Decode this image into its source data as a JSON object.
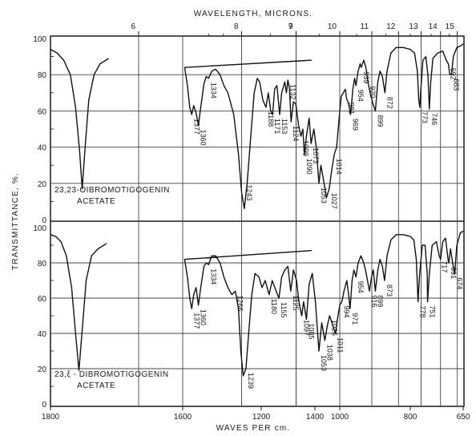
{
  "chart_data": {
    "type": "line",
    "top_axis": {
      "label": "WAVELENGTH, MICRONS.",
      "ticks": [
        {
          "value": 6,
          "label": "6"
        },
        {
          "value": 7,
          "label": "7"
        },
        {
          "value": 8,
          "label": "8"
        },
        {
          "value": 9,
          "label": "9"
        },
        {
          "value": 10,
          "label": "10"
        },
        {
          "value": 11,
          "label": "11"
        },
        {
          "value": 12,
          "label": "12"
        },
        {
          "value": 13,
          "label": "13"
        },
        {
          "value": 14,
          "label": "14"
        },
        {
          "value": 15,
          "label": "15"
        }
      ]
    },
    "bottom_axis": {
      "label": "WAVES PER cm.",
      "range": [
        1800,
        650
      ],
      "ticks": [
        {
          "value": 1800,
          "label": "1800"
        },
        {
          "value": 1600,
          "label": "1600"
        },
        {
          "value": 1400,
          "label": "1400"
        },
        {
          "value": 1200,
          "label": "1200"
        },
        {
          "value": 1000,
          "label": "1000"
        },
        {
          "value": 800,
          "label": "800"
        },
        {
          "value": 650,
          "label": "650"
        }
      ]
    },
    "y_axis": {
      "label": "TRANSMITTANCE, %.",
      "range": [
        0,
        100
      ],
      "ticks": [
        {
          "value": 0,
          "label": "0"
        },
        {
          "value": 20,
          "label": "20"
        },
        {
          "value": 40,
          "label": "40"
        },
        {
          "value": 60,
          "label": "60"
        },
        {
          "value": 80,
          "label": "80"
        },
        {
          "value": 100,
          "label": "100"
        }
      ]
    },
    "grid": true,
    "panels": [
      {
        "sample_label": [
          "23,23-OIBROMOTIGOGENIN",
          "ACETATE"
        ],
        "carbonyl_region": [
          [
            1800,
            94
          ],
          [
            1790,
            92
          ],
          [
            1780,
            88
          ],
          [
            1770,
            80
          ],
          [
            1762,
            62
          ],
          [
            1756,
            38
          ],
          [
            1752,
            17
          ],
          [
            1748,
            38
          ],
          [
            1742,
            66
          ],
          [
            1734,
            80
          ],
          [
            1725,
            86
          ],
          [
            1712,
            89
          ]
        ],
        "fingerprint_region": [
          [
            1405,
            88
          ],
          [
            1395,
            84
          ],
          [
            1388,
            74
          ],
          [
            1382,
            62
          ],
          [
            1377,
            58
          ],
          [
            1372,
            63
          ],
          [
            1366,
            59
          ],
          [
            1360,
            52
          ],
          [
            1354,
            62
          ],
          [
            1346,
            75
          ],
          [
            1340,
            79
          ],
          [
            1334,
            78
          ],
          [
            1326,
            82
          ],
          [
            1316,
            83
          ],
          [
            1305,
            80
          ],
          [
            1295,
            74
          ],
          [
            1285,
            70
          ],
          [
            1270,
            58
          ],
          [
            1258,
            36
          ],
          [
            1250,
            15
          ],
          [
            1243,
            6
          ],
          [
            1236,
            20
          ],
          [
            1226,
            48
          ],
          [
            1218,
            70
          ],
          [
            1210,
            78
          ],
          [
            1204,
            76
          ],
          [
            1196,
            66
          ],
          [
            1188,
            62
          ],
          [
            1182,
            70
          ],
          [
            1176,
            60
          ],
          [
            1171,
            58
          ],
          [
            1166,
            72
          ],
          [
            1160,
            74
          ],
          [
            1153,
            58
          ],
          [
            1148,
            70
          ],
          [
            1140,
            76
          ],
          [
            1136,
            70
          ],
          [
            1132,
            77
          ],
          [
            1128,
            72
          ],
          [
            1124,
            54
          ],
          [
            1118,
            65
          ],
          [
            1112,
            64
          ],
          [
            1105,
            52
          ],
          [
            1099,
            46
          ],
          [
            1094,
            50
          ],
          [
            1090,
            36
          ],
          [
            1085,
            46
          ],
          [
            1078,
            56
          ],
          [
            1073,
            42
          ],
          [
            1066,
            50
          ],
          [
            1060,
            40
          ],
          [
            1053,
            20
          ],
          [
            1048,
            30
          ],
          [
            1040,
            20
          ],
          [
            1034,
            12
          ],
          [
            1027,
            17
          ],
          [
            1020,
            28
          ],
          [
            1014,
            36
          ],
          [
            1008,
            40
          ],
          [
            1002,
            55
          ],
          [
            996,
            68
          ],
          [
            990,
            70
          ],
          [
            984,
            72
          ],
          [
            981,
            67
          ],
          [
            975,
            64
          ],
          [
            969,
            58
          ],
          [
            963,
            72
          ],
          [
            958,
            78
          ],
          [
            954,
            74
          ],
          [
            948,
            82
          ],
          [
            942,
            86
          ],
          [
            939,
            84
          ],
          [
            932,
            88
          ],
          [
            926,
            84
          ],
          [
            920,
            76
          ],
          [
            914,
            70
          ],
          [
            906,
            64
          ],
          [
            899,
            60
          ],
          [
            892,
            76
          ],
          [
            886,
            82
          ],
          [
            879,
            79
          ],
          [
            872,
            70
          ],
          [
            866,
            82
          ],
          [
            855,
            92
          ],
          [
            840,
            95
          ],
          [
            820,
            95
          ],
          [
            800,
            94
          ],
          [
            788,
            92
          ],
          [
            780,
            82
          ],
          [
            776,
            66
          ],
          [
            773,
            62
          ],
          [
            770,
            72
          ],
          [
            764,
            88
          ],
          [
            756,
            90
          ],
          [
            750,
            80
          ],
          [
            746,
            61
          ],
          [
            742,
            76
          ],
          [
            736,
            89
          ],
          [
            722,
            92
          ],
          [
            708,
            93
          ],
          [
            698,
            88
          ],
          [
            692,
            86
          ],
          [
            688,
            80
          ],
          [
            683,
            80
          ],
          [
            678,
            90
          ],
          [
            668,
            95
          ],
          [
            656,
            96
          ],
          [
            650,
            97
          ]
        ],
        "peak_labels": [
          {
            "x": 1377,
            "label": "1377"
          },
          {
            "x": 1360,
            "label": "1360"
          },
          {
            "x": 1334,
            "label": "1334"
          },
          {
            "x": 1243,
            "label": "1243"
          },
          {
            "x": 1188,
            "label": "1188"
          },
          {
            "x": 1171,
            "label": "1171"
          },
          {
            "x": 1153,
            "label": "1153"
          },
          {
            "x": 1132,
            "label": "1132"
          },
          {
            "x": 1124,
            "label": "1124"
          },
          {
            "x": 1099,
            "label": "1099"
          },
          {
            "x": 1090,
            "label": "1090"
          },
          {
            "x": 1073,
            "label": "1073"
          },
          {
            "x": 1053,
            "label": "1053"
          },
          {
            "x": 1027,
            "label": "1027"
          },
          {
            "x": 1014,
            "label": "1014"
          },
          {
            "x": 981,
            "label": "981"
          },
          {
            "x": 969,
            "label": "969"
          },
          {
            "x": 954,
            "label": "954"
          },
          {
            "x": 939,
            "label": "939"
          },
          {
            "x": 920,
            "label": "920"
          },
          {
            "x": 899,
            "label": "899"
          },
          {
            "x": 872,
            "label": "872"
          },
          {
            "x": 773,
            "label": "773"
          },
          {
            "x": 746,
            "label": "746"
          },
          {
            "x": 692,
            "label": "692"
          },
          {
            "x": 683,
            "label": "683"
          }
        ]
      },
      {
        "sample_label": [
          "23,ξ - DIBROMOTIGOGENIN",
          "ACETATE"
        ],
        "carbonyl_region": [
          [
            1800,
            96
          ],
          [
            1792,
            95
          ],
          [
            1784,
            92
          ],
          [
            1776,
            84
          ],
          [
            1768,
            66
          ],
          [
            1762,
            40
          ],
          [
            1757,
            19
          ],
          [
            1752,
            42
          ],
          [
            1746,
            70
          ],
          [
            1738,
            84
          ],
          [
            1728,
            88
          ],
          [
            1715,
            91
          ]
        ],
        "fingerprint_region": [
          [
            1405,
            87
          ],
          [
            1395,
            82
          ],
          [
            1388,
            72
          ],
          [
            1382,
            60
          ],
          [
            1377,
            54
          ],
          [
            1372,
            62
          ],
          [
            1366,
            66
          ],
          [
            1360,
            56
          ],
          [
            1354,
            66
          ],
          [
            1346,
            78
          ],
          [
            1340,
            80
          ],
          [
            1334,
            79
          ],
          [
            1326,
            84
          ],
          [
            1316,
            84
          ],
          [
            1305,
            80
          ],
          [
            1295,
            72
          ],
          [
            1285,
            66
          ],
          [
            1275,
            62
          ],
          [
            1266,
            64
          ],
          [
            1258,
            54
          ],
          [
            1252,
            30
          ],
          [
            1246,
            16
          ],
          [
            1239,
            20
          ],
          [
            1232,
            40
          ],
          [
            1224,
            62
          ],
          [
            1216,
            74
          ],
          [
            1206,
            72
          ],
          [
            1198,
            66
          ],
          [
            1190,
            70
          ],
          [
            1180,
            62
          ],
          [
            1172,
            70
          ],
          [
            1162,
            64
          ],
          [
            1155,
            60
          ],
          [
            1148,
            72
          ],
          [
            1140,
            76
          ],
          [
            1132,
            78
          ],
          [
            1125,
            64
          ],
          [
            1118,
            76
          ],
          [
            1110,
            70
          ],
          [
            1104,
            58
          ],
          [
            1097,
            50
          ],
          [
            1092,
            58
          ],
          [
            1085,
            48
          ],
          [
            1078,
            68
          ],
          [
            1070,
            74
          ],
          [
            1062,
            58
          ],
          [
            1053,
            30
          ],
          [
            1046,
            46
          ],
          [
            1038,
            36
          ],
          [
            1032,
            44
          ],
          [
            1026,
            50
          ],
          [
            1020,
            46
          ],
          [
            1011,
            40
          ],
          [
            1006,
            48
          ],
          [
            1000,
            56
          ],
          [
            994,
            58
          ],
          [
            988,
            64
          ],
          [
            980,
            70
          ],
          [
            975,
            62
          ],
          [
            971,
            54
          ],
          [
            965,
            70
          ],
          [
            960,
            76
          ],
          [
            954,
            72
          ],
          [
            948,
            80
          ],
          [
            940,
            84
          ],
          [
            932,
            80
          ],
          [
            925,
            74
          ],
          [
            916,
            64
          ],
          [
            910,
            72
          ],
          [
            905,
            76
          ],
          [
            899,
            64
          ],
          [
            892,
            76
          ],
          [
            886,
            82
          ],
          [
            879,
            78
          ],
          [
            873,
            70
          ],
          [
            866,
            84
          ],
          [
            855,
            93
          ],
          [
            840,
            96
          ],
          [
            820,
            96
          ],
          [
            800,
            95
          ],
          [
            790,
            93
          ],
          [
            783,
            82
          ],
          [
            778,
            58
          ],
          [
            774,
            72
          ],
          [
            766,
            90
          ],
          [
            758,
            90
          ],
          [
            752,
            74
          ],
          [
            751,
            58
          ],
          [
            746,
            74
          ],
          [
            738,
            90
          ],
          [
            726,
            92
          ],
          [
            718,
            84
          ],
          [
            714,
            82
          ],
          [
            708,
            92
          ],
          [
            700,
            94
          ],
          [
            693,
            82
          ],
          [
            691,
            80
          ],
          [
            686,
            88
          ],
          [
            680,
            80
          ],
          [
            674,
            74
          ],
          [
            668,
            90
          ],
          [
            658,
            97
          ],
          [
            650,
            98
          ]
        ],
        "peak_labels": [
          {
            "x": 1377,
            "label": "1377"
          },
          {
            "x": 1360,
            "label": "1360"
          },
          {
            "x": 1334,
            "label": "1334"
          },
          {
            "x": 1266,
            "label": "1266"
          },
          {
            "x": 1239,
            "label": "1239"
          },
          {
            "x": 1180,
            "label": "1180"
          },
          {
            "x": 1155,
            "label": "1155"
          },
          {
            "x": 1125,
            "label": "1125"
          },
          {
            "x": 1097,
            "label": "1097"
          },
          {
            "x": 1085,
            "label": "1085"
          },
          {
            "x": 1053,
            "label": "1053"
          },
          {
            "x": 1038,
            "label": "1038"
          },
          {
            "x": 1026,
            "label": "1026"
          },
          {
            "x": 1011,
            "label": "1011"
          },
          {
            "x": 994,
            "label": "994"
          },
          {
            "x": 971,
            "label": "971"
          },
          {
            "x": 954,
            "label": "954"
          },
          {
            "x": 916,
            "label": "916"
          },
          {
            "x": 899,
            "label": "899"
          },
          {
            "x": 873,
            "label": "873"
          },
          {
            "x": 778,
            "label": "778"
          },
          {
            "x": 751,
            "label": "751"
          },
          {
            "x": 717,
            "label": "717"
          },
          {
            "x": 691,
            "label": "691"
          },
          {
            "x": 674,
            "label": "674"
          }
        ]
      }
    ]
  }
}
